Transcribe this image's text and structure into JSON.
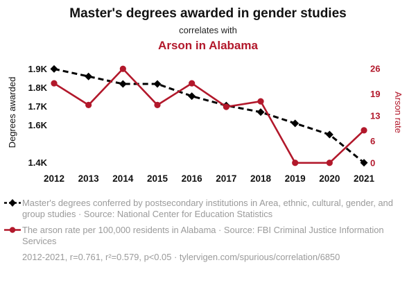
{
  "header": {
    "title": "Master's degrees awarded in gender studies",
    "connector": "correlates with",
    "correlate": "Arson in Alabama"
  },
  "colors": {
    "accent_red": "#b2182b",
    "series_black": "#000000",
    "legend_gray": "#9a9a9a"
  },
  "chart_data": {
    "type": "line",
    "x": [
      2012,
      2013,
      2014,
      2015,
      2016,
      2017,
      2018,
      2019,
      2020,
      2021
    ],
    "series": [
      {
        "name": "Master's degrees conferred by postsecondary institutions in Area, ethnic, cultural, gender, and group studies",
        "axis": "left",
        "style": "dashed-diamond",
        "color": "#000000",
        "values": [
          1900,
          1860,
          1820,
          1820,
          1755,
          1705,
          1670,
          1610,
          1550,
          1400
        ]
      },
      {
        "name": "The arson rate per 100,000 residents in Alabama",
        "axis": "right",
        "style": "solid-circle",
        "color": "#b2182b",
        "values": [
          22,
          16,
          26,
          16,
          22,
          15.5,
          17,
          0,
          0,
          9
        ]
      }
    ],
    "left_axis": {
      "label": "Degrees awarded",
      "tick_labels": [
        "1.9K",
        "1.8K",
        "1.7K",
        "1.6K",
        "1.4K"
      ],
      "tick_values": [
        1900,
        1800,
        1700,
        1600,
        1400
      ],
      "range": [
        1380,
        1920
      ]
    },
    "right_axis": {
      "label": "Arson rate",
      "tick_labels": [
        "26",
        "19",
        "13",
        "6",
        "0"
      ],
      "tick_values": [
        26,
        19,
        13,
        6,
        0
      ],
      "range": [
        -1,
        27
      ]
    },
    "grid": false,
    "legend_position": "bottom"
  },
  "legend": {
    "item_degrees": "Master's degrees conferred by postsecondary institutions in Area, ethnic, cultural, gender, and group studies · Source: National Center for Education Statistics",
    "item_arson": "The arson rate per 100,000 residents in Alabama · Source: FBI Criminal Justice Information Services",
    "footnote": "2012-2021, r=0.761, r²=0.579, p<0.05 · tylervigen.com/spurious/correlation/6850"
  }
}
